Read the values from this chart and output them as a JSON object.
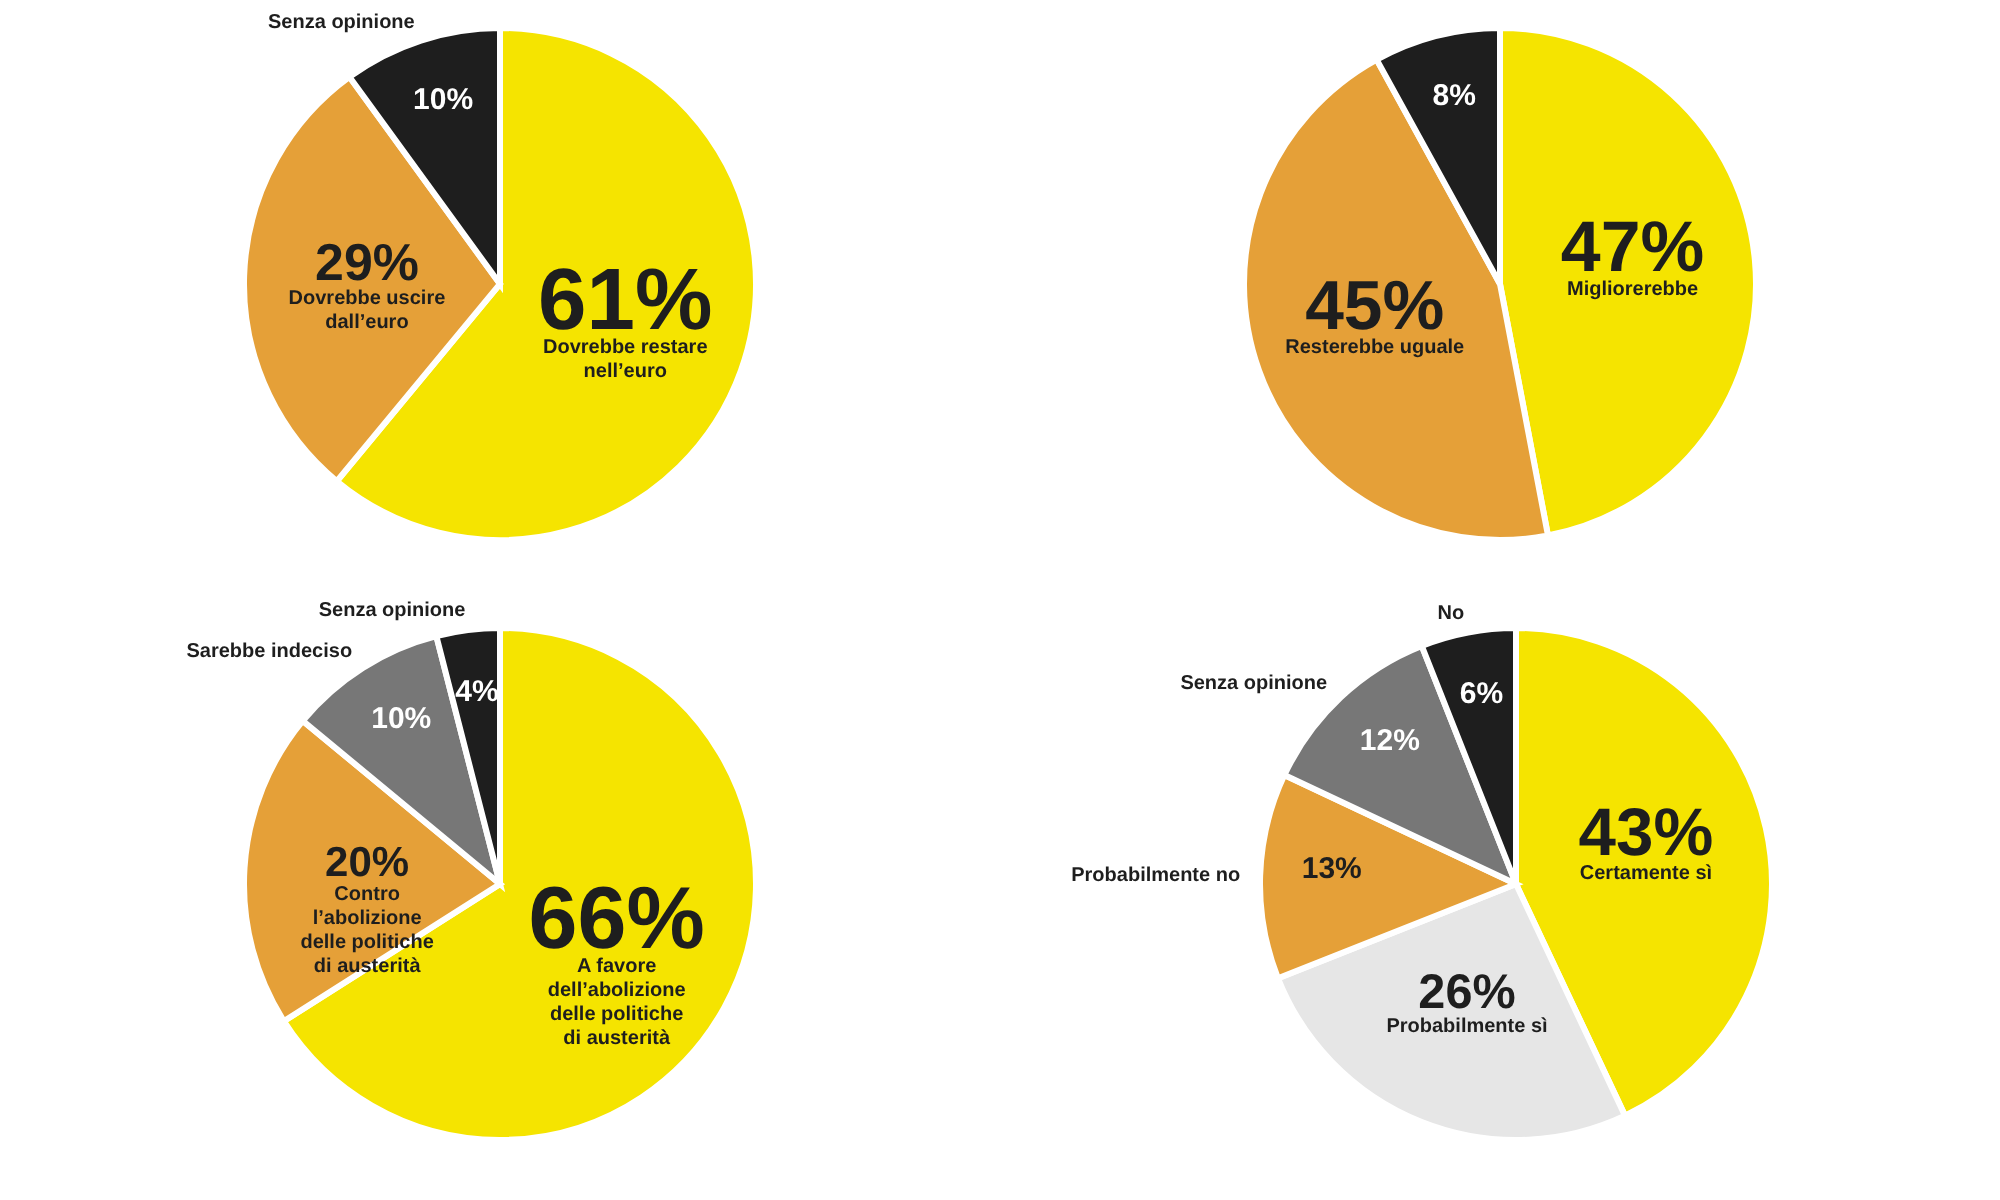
{
  "chart_data": [
    {
      "type": "pie",
      "categories": [
        "Dovrebbe restare nell’euro",
        "Dovrebbe uscire dall’euro",
        "Senza opinione"
      ],
      "values": [
        61,
        29,
        10
      ],
      "colors": [
        "#f5e400",
        "#e5a038",
        "#1e1e1e"
      ],
      "value_labels": [
        "61%",
        "29%",
        "10%"
      ]
    },
    {
      "type": "pie",
      "categories": [
        "Migliorerebbe",
        "Resterebbe uguale",
        null
      ],
      "values": [
        47,
        45,
        8
      ],
      "colors": [
        "#f5e400",
        "#e5a038",
        "#1e1e1e"
      ],
      "value_labels": [
        "47%",
        "45%",
        "8%"
      ]
    },
    {
      "type": "pie",
      "categories": [
        "A favore dell’abolizione delle politiche di austerità",
        "Contro l’abolizione delle politiche di austerità",
        "Sarebbe indeciso",
        "Senza opinione"
      ],
      "values": [
        66,
        20,
        10,
        4
      ],
      "colors": [
        "#f5e400",
        "#e5a038",
        "#777777",
        "#1e1e1e"
      ],
      "value_labels": [
        "66%",
        "20%",
        "10%",
        "4%"
      ]
    },
    {
      "type": "pie",
      "categories": [
        "Certamente sì",
        "Probabilmente sì",
        "Probabilmente no",
        "Senza opinione",
        "No"
      ],
      "values": [
        43,
        26,
        13,
        12,
        6
      ],
      "colors": [
        "#f5e400",
        "#e6e6e6",
        "#e5a038",
        "#777777",
        "#1e1e1e"
      ],
      "value_labels": [
        "43%",
        "26%",
        "13%",
        "12%",
        "6%"
      ]
    }
  ]
}
